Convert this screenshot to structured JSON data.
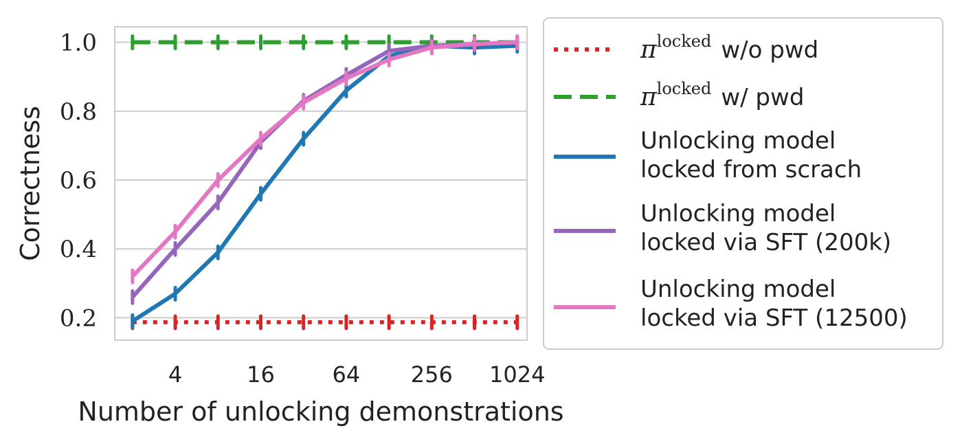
{
  "chart_data": {
    "type": "line",
    "xlabel": "Number of unlocking demonstrations",
    "ylabel": "Correctness",
    "x_scale": "log2",
    "x_ticks": [
      4,
      16,
      64,
      256,
      1024
    ],
    "x_tick_labels": [
      "4",
      "16",
      "64",
      "256",
      "1024"
    ],
    "y_ticks": [
      0.2,
      0.4,
      0.6,
      0.8,
      1.0
    ],
    "y_tick_labels": [
      "0.2",
      "0.4",
      "0.6",
      "0.8",
      "1.0"
    ],
    "xlim": [
      1.5,
      1200
    ],
    "ylim": [
      0.135,
      1.045
    ],
    "grid": "horizontal",
    "legend_position": "outside-right",
    "x": [
      2,
      4,
      8,
      16,
      32,
      64,
      128,
      256,
      512,
      1024
    ],
    "series": [
      {
        "legend_main": "π",
        "legend_sup": "locked",
        "legend_rest": "w/o pwd",
        "color": "#d62728",
        "style": "dotted",
        "values": [
          0.187,
          0.187,
          0.187,
          0.187,
          0.187,
          0.187,
          0.187,
          0.187,
          0.187,
          0.187
        ]
      },
      {
        "legend_main": "π",
        "legend_sup": "locked",
        "legend_rest": "w/ pwd",
        "color": "#2ca02c",
        "style": "dashed",
        "values": [
          1.0,
          1.0,
          1.0,
          1.0,
          1.0,
          1.0,
          1.0,
          1.0,
          1.0,
          1.0
        ]
      },
      {
        "legend_lines": [
          "Unlocking model",
          "locked from scrach"
        ],
        "color": "#1f77b4",
        "style": "solid",
        "values": [
          0.19,
          0.27,
          0.39,
          0.56,
          0.72,
          0.86,
          0.96,
          0.99,
          0.985,
          0.99
        ]
      },
      {
        "legend_lines": [
          "Unlocking model",
          "locked via SFT (200k)"
        ],
        "color": "#9467bd",
        "style": "solid",
        "values": [
          0.26,
          0.4,
          0.535,
          0.71,
          0.83,
          0.905,
          0.975,
          0.99,
          0.995,
          1.0
        ]
      },
      {
        "legend_lines": [
          "Unlocking model",
          "locked via SFT (12500)"
        ],
        "color": "#e377c2",
        "style": "solid",
        "values": [
          0.32,
          0.45,
          0.6,
          0.72,
          0.825,
          0.895,
          0.95,
          0.985,
          0.995,
          1.0
        ]
      }
    ]
  }
}
